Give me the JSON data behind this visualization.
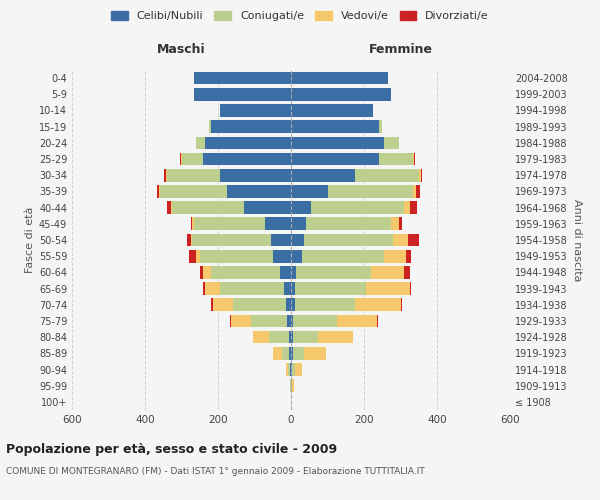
{
  "age_groups": [
    "100+",
    "95-99",
    "90-94",
    "85-89",
    "80-84",
    "75-79",
    "70-74",
    "65-69",
    "60-64",
    "55-59",
    "50-54",
    "45-49",
    "40-44",
    "35-39",
    "30-34",
    "25-29",
    "20-24",
    "15-19",
    "10-14",
    "5-9",
    "0-4"
  ],
  "birth_years": [
    "≤ 1908",
    "1909-1913",
    "1914-1918",
    "1919-1923",
    "1924-1928",
    "1929-1933",
    "1934-1938",
    "1939-1943",
    "1944-1948",
    "1949-1953",
    "1954-1958",
    "1959-1963",
    "1964-1968",
    "1969-1973",
    "1974-1978",
    "1979-1983",
    "1984-1988",
    "1989-1993",
    "1994-1998",
    "1999-2003",
    "2004-2008"
  ],
  "colors": {
    "celibe": "#3A6EA5",
    "coniugato": "#BCCF8F",
    "vedovo": "#F5C96B",
    "divorziato": "#CC2222"
  },
  "maschi": {
    "celibe": [
      0,
      1,
      2,
      5,
      5,
      10,
      15,
      20,
      30,
      50,
      55,
      70,
      130,
      175,
      195,
      240,
      235,
      220,
      195,
      265,
      265
    ],
    "coniugato": [
      0,
      1,
      5,
      20,
      55,
      100,
      145,
      175,
      190,
      200,
      215,
      195,
      195,
      185,
      145,
      60,
      25,
      5,
      0,
      0,
      0
    ],
    "vedovo": [
      0,
      2,
      8,
      25,
      45,
      55,
      55,
      40,
      20,
      10,
      5,
      5,
      5,
      2,
      2,
      2,
      0,
      0,
      0,
      0,
      0
    ],
    "divorziato": [
      0,
      0,
      0,
      0,
      0,
      2,
      5,
      5,
      10,
      20,
      10,
      5,
      10,
      5,
      5,
      2,
      0,
      0,
      0,
      0,
      0
    ]
  },
  "femmine": {
    "celibe": [
      0,
      1,
      2,
      5,
      5,
      5,
      10,
      10,
      15,
      30,
      35,
      40,
      55,
      100,
      175,
      240,
      255,
      240,
      225,
      275,
      265
    ],
    "coniugato": [
      0,
      2,
      8,
      30,
      70,
      120,
      165,
      195,
      205,
      225,
      245,
      235,
      255,
      235,
      175,
      95,
      40,
      10,
      0,
      0,
      0
    ],
    "vedovo": [
      0,
      5,
      20,
      60,
      95,
      110,
      125,
      120,
      90,
      60,
      40,
      20,
      15,
      8,
      5,
      3,
      2,
      0,
      0,
      0,
      0
    ],
    "divorziato": [
      0,
      0,
      0,
      0,
      0,
      2,
      5,
      5,
      15,
      15,
      30,
      10,
      20,
      10,
      5,
      2,
      0,
      0,
      0,
      0,
      0
    ]
  },
  "title": "Popolazione per età, sesso e stato civile - 2009",
  "subtitle": "COMUNE DI MONTEGRANARO (FM) - Dati ISTAT 1° gennaio 2009 - Elaborazione TUTTITALIA.IT",
  "xlabel_left": "Maschi",
  "xlabel_right": "Femmine",
  "ylabel_left": "Fasce di età",
  "ylabel_right": "Anni di nascita",
  "xlim": 600,
  "bg_color": "#F5F5F5",
  "plot_bg": "#F5F5F5",
  "grid_color": "#CCCCCC",
  "legend_labels": [
    "Celibi/Nubili",
    "Coniugati/e",
    "Vedovi/e",
    "Divorziati/e"
  ]
}
